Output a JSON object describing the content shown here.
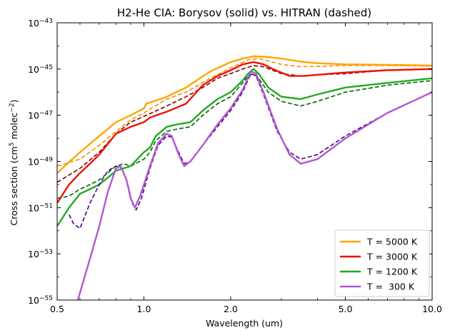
{
  "chart_data": {
    "type": "line",
    "title": "H2-He CIA:  Borysov (solid) vs. HITRAN (dashed)",
    "xlabel": "Wavelength (um)",
    "ylabel": {
      "prefix": "Cross section (cm",
      "sup1": "5",
      "middle": " molec",
      "sup2": "−2",
      "suffix": ")"
    },
    "xscale": "log",
    "yscale": "log",
    "xlim": [
      0.5,
      10.0
    ],
    "ylim_exp": [
      -55,
      -43
    ],
    "x_ticks": [
      {
        "value": 0.5,
        "label": "0.5"
      },
      {
        "value": 1.0,
        "label": "1.0"
      },
      {
        "value": 2.0,
        "label": "2.0"
      },
      {
        "value": 5.0,
        "label": "5.0"
      },
      {
        "value": 10.0,
        "label": "10.0"
      }
    ],
    "y_ticks": [
      {
        "exp": -55,
        "base": "10",
        "sup": "−55"
      },
      {
        "exp": -53,
        "base": "10",
        "sup": "−53"
      },
      {
        "exp": -51,
        "base": "10",
        "sup": "−51"
      },
      {
        "exp": -49,
        "base": "10",
        "sup": "−49"
      },
      {
        "exp": -47,
        "base": "10",
        "sup": "−47"
      },
      {
        "exp": -45,
        "base": "10",
        "sup": "−45"
      },
      {
        "exp": -43,
        "base": "10",
        "sup": "−43"
      }
    ],
    "grid": false,
    "legend_position": "lower-right",
    "series": [
      {
        "name": "T = 5000 K",
        "color": "#ffa500",
        "dashed_color": "#ff8c00",
        "solid": [
          [
            0.5,
            -49.5
          ],
          [
            0.6,
            -48.6
          ],
          [
            0.7,
            -47.9
          ],
          [
            0.8,
            -47.3
          ],
          [
            0.9,
            -47.0
          ],
          [
            1.0,
            -46.7
          ],
          [
            1.02,
            -46.5
          ],
          [
            1.2,
            -46.2
          ],
          [
            1.4,
            -45.8
          ],
          [
            1.7,
            -45.1
          ],
          [
            2.0,
            -44.7
          ],
          [
            2.2,
            -44.55
          ],
          [
            2.4,
            -44.45
          ],
          [
            2.7,
            -44.48
          ],
          [
            3.0,
            -44.55
          ],
          [
            3.5,
            -44.68
          ],
          [
            4.0,
            -44.75
          ],
          [
            5.0,
            -44.8
          ],
          [
            7.0,
            -44.82
          ],
          [
            10.0,
            -44.85
          ]
        ],
        "dashed": [
          [
            0.5,
            -49.2
          ],
          [
            0.6,
            -48.9
          ],
          [
            0.7,
            -48.3
          ],
          [
            0.8,
            -47.7
          ],
          [
            0.9,
            -47.2
          ],
          [
            1.0,
            -46.9
          ],
          [
            1.2,
            -46.3
          ],
          [
            1.4,
            -46.0
          ],
          [
            1.7,
            -45.4
          ],
          [
            2.0,
            -44.95
          ],
          [
            2.3,
            -44.6
          ],
          [
            2.5,
            -44.55
          ],
          [
            3.0,
            -44.8
          ],
          [
            3.5,
            -44.9
          ],
          [
            5.0,
            -44.85
          ],
          [
            7.0,
            -44.85
          ],
          [
            10.0,
            -44.88
          ]
        ]
      },
      {
        "name": "T = 3000 K",
        "color": "#ee1100",
        "dashed_color": "#800000",
        "solid": [
          [
            0.5,
            -50.8
          ],
          [
            0.55,
            -50.0
          ],
          [
            0.6,
            -49.5
          ],
          [
            0.65,
            -49.1
          ],
          [
            0.7,
            -48.7
          ],
          [
            0.8,
            -47.8
          ],
          [
            0.9,
            -47.5
          ],
          [
            1.0,
            -47.3
          ],
          [
            1.05,
            -47.1
          ],
          [
            1.2,
            -46.85
          ],
          [
            1.4,
            -46.5
          ],
          [
            1.6,
            -45.7
          ],
          [
            1.8,
            -45.3
          ],
          [
            2.0,
            -45.05
          ],
          [
            2.2,
            -44.8
          ],
          [
            2.4,
            -44.7
          ],
          [
            2.6,
            -44.8
          ],
          [
            2.8,
            -45.0
          ],
          [
            3.2,
            -45.3
          ],
          [
            3.6,
            -45.3
          ],
          [
            4.0,
            -45.25
          ],
          [
            5.0,
            -45.15
          ],
          [
            7.0,
            -45.05
          ],
          [
            10.0,
            -45.0
          ]
        ],
        "dashed": [
          [
            0.5,
            -49.9
          ],
          [
            0.6,
            -49.3
          ],
          [
            0.7,
            -48.6
          ],
          [
            0.8,
            -47.8
          ],
          [
            0.9,
            -47.3
          ],
          [
            1.0,
            -47.05
          ],
          [
            1.2,
            -46.6
          ],
          [
            1.4,
            -46.2
          ],
          [
            1.6,
            -45.8
          ],
          [
            1.8,
            -45.4
          ],
          [
            2.0,
            -45.2
          ],
          [
            2.2,
            -45.0
          ],
          [
            2.4,
            -44.85
          ],
          [
            2.6,
            -44.9
          ],
          [
            3.0,
            -45.2
          ],
          [
            3.5,
            -45.3
          ],
          [
            4.0,
            -45.25
          ],
          [
            5.0,
            -45.2
          ],
          [
            7.0,
            -45.05
          ],
          [
            10.0,
            -45.0
          ]
        ]
      },
      {
        "name": "T = 1200 K",
        "color": "#22aa22",
        "dashed_color": "#006400",
        "solid": [
          [
            0.5,
            -51.8
          ],
          [
            0.55,
            -51.0
          ],
          [
            0.6,
            -50.4
          ],
          [
            0.65,
            -50.2
          ],
          [
            0.7,
            -50.0
          ],
          [
            0.75,
            -49.7
          ],
          [
            0.8,
            -49.4
          ],
          [
            0.9,
            -49.2
          ],
          [
            1.0,
            -48.6
          ],
          [
            1.05,
            -48.4
          ],
          [
            1.1,
            -47.9
          ],
          [
            1.2,
            -47.5
          ],
          [
            1.3,
            -47.4
          ],
          [
            1.45,
            -47.3
          ],
          [
            1.6,
            -46.8
          ],
          [
            1.8,
            -46.3
          ],
          [
            2.0,
            -46.0
          ],
          [
            2.2,
            -45.5
          ],
          [
            2.3,
            -45.2
          ],
          [
            2.4,
            -45.0
          ],
          [
            2.5,
            -45.2
          ],
          [
            2.7,
            -45.8
          ],
          [
            3.0,
            -46.2
          ],
          [
            3.5,
            -46.3
          ],
          [
            4.0,
            -46.1
          ],
          [
            5.0,
            -45.8
          ],
          [
            7.0,
            -45.6
          ],
          [
            10.0,
            -45.4
          ]
        ],
        "dashed": [
          [
            0.5,
            -50.6
          ],
          [
            0.55,
            -50.5
          ],
          [
            0.6,
            -50.2
          ],
          [
            0.65,
            -50.0
          ],
          [
            0.7,
            -49.8
          ],
          [
            0.8,
            -49.2
          ],
          [
            0.85,
            -49.1
          ],
          [
            0.9,
            -49.2
          ],
          [
            1.0,
            -48.9
          ],
          [
            1.05,
            -48.6
          ],
          [
            1.1,
            -48.1
          ],
          [
            1.2,
            -47.7
          ],
          [
            1.3,
            -47.6
          ],
          [
            1.45,
            -47.5
          ],
          [
            1.6,
            -47.0
          ],
          [
            1.8,
            -46.5
          ],
          [
            2.0,
            -46.2
          ],
          [
            2.2,
            -45.6
          ],
          [
            2.3,
            -45.3
          ],
          [
            2.4,
            -45.2
          ],
          [
            2.5,
            -45.4
          ],
          [
            2.7,
            -46.0
          ],
          [
            3.0,
            -46.4
          ],
          [
            3.5,
            -46.6
          ],
          [
            4.0,
            -46.4
          ],
          [
            5.0,
            -46.0
          ],
          [
            7.0,
            -45.7
          ],
          [
            10.0,
            -45.5
          ]
        ]
      },
      {
        "name": "T =  300 K",
        "color": "#b158d0",
        "dashed_color": "#4b0082",
        "solid": [
          [
            0.59,
            -55.0
          ],
          [
            0.65,
            -53.2
          ],
          [
            0.7,
            -51.8
          ],
          [
            0.75,
            -50.3
          ],
          [
            0.8,
            -49.3
          ],
          [
            0.83,
            -49.2
          ],
          [
            0.87,
            -49.8
          ],
          [
            0.9,
            -50.6
          ],
          [
            0.93,
            -51.0
          ],
          [
            0.97,
            -50.5
          ],
          [
            1.05,
            -49.2
          ],
          [
            1.12,
            -48.2
          ],
          [
            1.2,
            -47.8
          ],
          [
            1.25,
            -47.9
          ],
          [
            1.32,
            -48.7
          ],
          [
            1.38,
            -49.2
          ],
          [
            1.45,
            -49.0
          ],
          [
            1.6,
            -48.3
          ],
          [
            1.8,
            -47.4
          ],
          [
            2.0,
            -46.7
          ],
          [
            2.2,
            -45.9
          ],
          [
            2.35,
            -45.1
          ],
          [
            2.45,
            -45.2
          ],
          [
            2.6,
            -46.0
          ],
          [
            2.9,
            -47.6
          ],
          [
            3.2,
            -48.7
          ],
          [
            3.5,
            -49.1
          ],
          [
            4.0,
            -48.9
          ],
          [
            5.0,
            -48.0
          ],
          [
            7.0,
            -46.9
          ],
          [
            10.0,
            -46.0
          ]
        ],
        "dashed": [
          [
            0.55,
            -51.3
          ],
          [
            0.57,
            -51.7
          ],
          [
            0.6,
            -51.9
          ],
          [
            0.65,
            -50.8
          ],
          [
            0.7,
            -50.0
          ],
          [
            0.75,
            -49.4
          ],
          [
            0.8,
            -49.2
          ],
          [
            0.84,
            -49.3
          ],
          [
            0.88,
            -50.0
          ],
          [
            0.91,
            -50.8
          ],
          [
            0.94,
            -51.1
          ],
          [
            0.98,
            -50.6
          ],
          [
            1.05,
            -49.3
          ],
          [
            1.12,
            -48.3
          ],
          [
            1.2,
            -47.9
          ],
          [
            1.25,
            -47.95
          ],
          [
            1.32,
            -48.6
          ],
          [
            1.38,
            -49.1
          ],
          [
            1.45,
            -49.0
          ],
          [
            1.6,
            -48.3
          ],
          [
            1.8,
            -47.5
          ],
          [
            2.0,
            -46.8
          ],
          [
            2.2,
            -46.0
          ],
          [
            2.35,
            -45.2
          ],
          [
            2.45,
            -45.3
          ],
          [
            2.6,
            -46.1
          ],
          [
            2.9,
            -47.7
          ],
          [
            3.2,
            -48.6
          ],
          [
            3.5,
            -48.9
          ],
          [
            4.0,
            -48.7
          ],
          [
            5.0,
            -47.9
          ],
          [
            7.0,
            -46.9
          ],
          [
            10.0,
            -46.0
          ]
        ]
      }
    ]
  }
}
